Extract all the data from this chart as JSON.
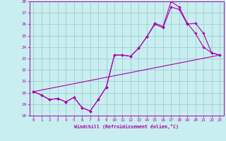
{
  "xlabel": "Windchill (Refroidissement éolien,°C)",
  "xlim": [
    -0.5,
    23.5
  ],
  "ylim": [
    18,
    28
  ],
  "xticks": [
    0,
    1,
    2,
    3,
    4,
    5,
    6,
    7,
    8,
    9,
    10,
    11,
    12,
    13,
    14,
    15,
    16,
    17,
    18,
    19,
    20,
    21,
    22,
    23
  ],
  "yticks": [
    18,
    19,
    20,
    21,
    22,
    23,
    24,
    25,
    26,
    27,
    28
  ],
  "background_color": "#c8eef0",
  "grid_color": "#a0ccd0",
  "line_color": "#aa00aa",
  "line1_x": [
    0,
    1,
    2,
    3,
    4,
    5,
    6,
    7,
    8,
    9,
    10,
    11,
    12,
    13,
    14,
    15,
    16,
    17,
    18,
    19,
    20,
    21,
    22,
    23
  ],
  "line1_y": [
    20.1,
    19.8,
    19.4,
    19.5,
    19.2,
    19.6,
    18.7,
    18.4,
    19.4,
    20.5,
    23.3,
    23.3,
    23.2,
    23.9,
    24.9,
    26.1,
    25.8,
    28.0,
    27.5,
    26.1,
    25.2,
    24.0,
    23.5,
    23.3
  ],
  "line2_x": [
    0,
    1,
    2,
    3,
    4,
    5,
    6,
    7,
    8,
    9,
    10,
    11,
    12,
    13,
    14,
    15,
    16,
    17,
    18,
    19,
    20,
    21,
    22,
    23
  ],
  "line2_y": [
    20.1,
    19.8,
    19.4,
    19.5,
    19.2,
    19.6,
    18.7,
    18.4,
    19.4,
    20.5,
    23.3,
    23.3,
    23.2,
    23.9,
    24.9,
    26.0,
    25.7,
    27.5,
    27.3,
    26.0,
    26.1,
    25.2,
    23.5,
    23.3
  ],
  "line3_x": [
    0,
    23
  ],
  "line3_y": [
    20.1,
    23.3
  ]
}
